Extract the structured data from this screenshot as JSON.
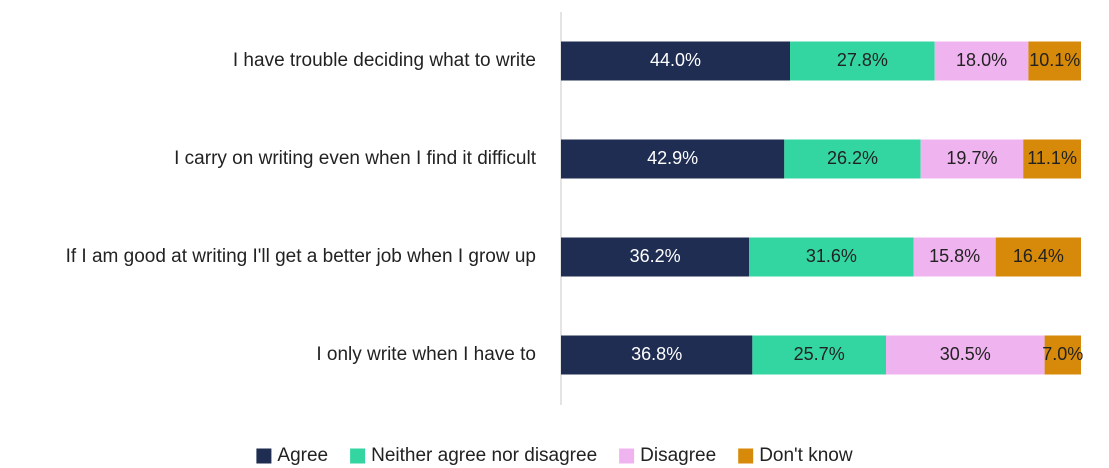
{
  "chart_data": {
    "type": "bar",
    "orientation": "horizontal",
    "stacked": true,
    "categories": [
      "I have trouble deciding what to write",
      "I carry on writing even when I find it difficult",
      "If I am good at writing I'll get a better job when I grow up",
      "I only write when I have to"
    ],
    "series": [
      {
        "name": "Agree",
        "color": "#1f2d52",
        "label_color": "#ffffff",
        "values": [
          44.0,
          42.9,
          36.2,
          36.8
        ]
      },
      {
        "name": "Neither agree nor disagree",
        "color": "#33d6a0",
        "label_color": "#222222",
        "values": [
          27.8,
          26.2,
          31.6,
          25.7
        ]
      },
      {
        "name": "Disagree",
        "color": "#efb3f0",
        "label_color": "#222222",
        "values": [
          18.0,
          19.7,
          15.8,
          30.5
        ]
      },
      {
        "name": "Don't know",
        "color": "#d78a0a",
        "label_color": "#222222",
        "values": [
          10.1,
          11.1,
          16.4,
          7.0
        ]
      }
    ],
    "xlim": [
      0,
      100
    ],
    "value_suffix": "%",
    "grid": false,
    "legend_position": "bottom"
  }
}
